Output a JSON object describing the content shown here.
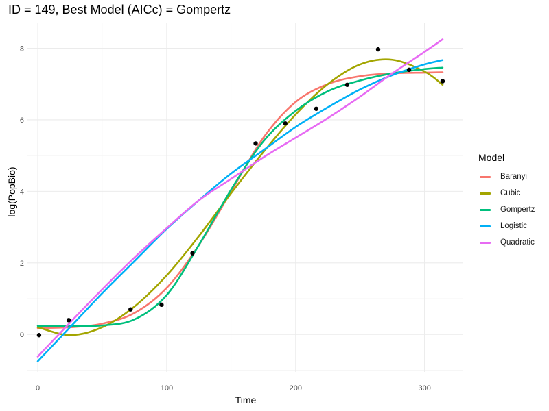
{
  "chart_data": {
    "type": "line",
    "title": "ID = 149, Best Model (AICc) = Gompertz",
    "xlabel": "Time",
    "ylabel": "log(PopBio)",
    "xlim": [
      -8,
      330
    ],
    "ylim": [
      -1.05,
      8.7
    ],
    "x_ticks": [
      0,
      100,
      200,
      300
    ],
    "y_ticks": [
      0,
      2,
      4,
      6,
      8
    ],
    "grid": true,
    "legend_title": "Model",
    "legend_position": "right",
    "points": [
      {
        "x": 1,
        "y": -0.02
      },
      {
        "x": 24,
        "y": 0.4
      },
      {
        "x": 72,
        "y": 0.7
      },
      {
        "x": 96,
        "y": 0.83
      },
      {
        "x": 120,
        "y": 2.27
      },
      {
        "x": 169,
        "y": 5.34
      },
      {
        "x": 192,
        "y": 5.9
      },
      {
        "x": 216,
        "y": 6.31
      },
      {
        "x": 240,
        "y": 6.98
      },
      {
        "x": 264,
        "y": 7.97
      },
      {
        "x": 288,
        "y": 7.4
      },
      {
        "x": 314,
        "y": 7.08
      }
    ],
    "series": [
      {
        "name": "Baranyi",
        "color": "#F8766D",
        "x": [
          0,
          25,
          50,
          75,
          100,
          125,
          150,
          175,
          200,
          225,
          250,
          275,
          300,
          314
        ],
        "y": [
          0.18,
          0.2,
          0.3,
          0.6,
          1.3,
          2.5,
          4.0,
          5.5,
          6.5,
          7.0,
          7.22,
          7.3,
          7.32,
          7.33
        ]
      },
      {
        "name": "Cubic",
        "color": "#A3A500",
        "x": [
          0,
          25,
          50,
          75,
          100,
          125,
          150,
          175,
          200,
          225,
          250,
          275,
          300,
          314
        ],
        "y": [
          0.2,
          -0.02,
          0.2,
          0.78,
          1.65,
          2.75,
          3.95,
          5.1,
          6.15,
          7.0,
          7.55,
          7.68,
          7.35,
          6.98
        ]
      },
      {
        "name": "Gompertz",
        "color": "#00BF7D",
        "x": [
          0,
          25,
          50,
          75,
          100,
          125,
          150,
          175,
          200,
          225,
          250,
          275,
          300,
          314
        ],
        "y": [
          0.24,
          0.24,
          0.25,
          0.42,
          1.1,
          2.5,
          4.05,
          5.4,
          6.25,
          6.8,
          7.1,
          7.3,
          7.42,
          7.46
        ]
      },
      {
        "name": "Logistic",
        "color": "#00B0F6",
        "x": [
          0,
          25,
          50,
          75,
          100,
          125,
          150,
          175,
          200,
          225,
          250,
          275,
          300,
          314
        ],
        "y": [
          -0.75,
          0.2,
          1.15,
          2.05,
          2.95,
          3.75,
          4.5,
          5.15,
          5.8,
          6.35,
          6.85,
          7.25,
          7.55,
          7.67
        ]
      },
      {
        "name": "Quadratic",
        "color": "#E76BF3",
        "x": [
          0,
          25,
          50,
          75,
          100,
          125,
          150,
          175,
          200,
          225,
          250,
          275,
          300,
          314
        ],
        "y": [
          -0.62,
          0.33,
          1.26,
          2.15,
          2.97,
          3.75,
          4.35,
          4.95,
          5.5,
          6.05,
          6.65,
          7.3,
          7.9,
          8.25
        ]
      }
    ]
  }
}
